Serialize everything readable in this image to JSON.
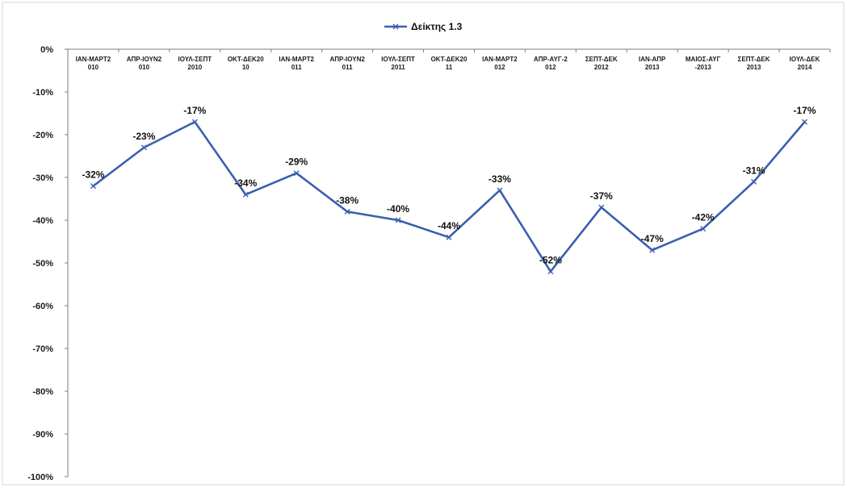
{
  "chart_data": {
    "type": "line",
    "title": "",
    "xlabel": "",
    "ylabel": "",
    "ylim": [
      -100,
      0
    ],
    "y_ticks": [
      "0%",
      "-10%",
      "-20%",
      "-30%",
      "-40%",
      "-50%",
      "-60%",
      "-70%",
      "-80%",
      "-90%",
      "-100%"
    ],
    "categories": [
      [
        "ΙΑΝ-ΜΑΡΤ2",
        "010"
      ],
      [
        "ΑΠΡ-ΙΟΥΝ2",
        "010"
      ],
      [
        "ΙΟΥΛ-ΣΕΠΤ",
        "2010"
      ],
      [
        "ΟΚΤ-ΔΕΚ20",
        "10"
      ],
      [
        "ΙΑΝ-ΜΑΡΤ2",
        "011"
      ],
      [
        "ΑΠΡ-ΙΟΥΝ2",
        "011"
      ],
      [
        "ΙΟΥΛ-ΣΕΠΤ",
        "2011"
      ],
      [
        "ΟΚΤ-ΔΕΚ20",
        "11"
      ],
      [
        "ΙΑΝ-ΜΑΡΤ2",
        "012"
      ],
      [
        "ΑΠΡ-ΑΥΓ-2",
        "012"
      ],
      [
        "ΣΕΠΤ-ΔΕΚ",
        "2012"
      ],
      [
        "ΙΑΝ-ΑΠΡ",
        "2013"
      ],
      [
        "ΜΑΙΟΣ-ΑΥΓ",
        "-2013"
      ],
      [
        "ΣΕΠΤ-ΔΕΚ",
        "2013"
      ],
      [
        "ΙΟΥΛ-ΔΕΚ",
        "2014"
      ]
    ],
    "series": [
      {
        "name": "Δείκτης 1.3",
        "values": [
          -32,
          -23,
          -17,
          -34,
          -29,
          -38,
          -40,
          -44,
          -33,
          -52,
          -37,
          -47,
          -42,
          -31,
          -17
        ],
        "labels": [
          "-32%",
          "-23%",
          "-17%",
          "-34%",
          "-29%",
          "-38%",
          "-40%",
          "-44%",
          "-33%",
          "-52%",
          "-37%",
          "-47%",
          "-42%",
          "-31%",
          "-17%"
        ]
      }
    ],
    "grid": false,
    "legend_position": "top-center",
    "x_axis_position": "top",
    "colors": {
      "line": "#3a5fb0",
      "marker": "#3a5fb0",
      "axis": "#7f7f7f"
    }
  }
}
